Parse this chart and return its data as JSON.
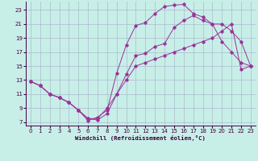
{
  "xlabel": "Windchill (Refroidissement éolien,°C)",
  "bg_color": "#c8eee8",
  "grid_color": "#aabbcc",
  "line_color": "#993399",
  "xlim": [
    -0.5,
    23.5
  ],
  "ylim": [
    6.5,
    24.2
  ],
  "xticks": [
    0,
    1,
    2,
    3,
    4,
    5,
    6,
    7,
    8,
    9,
    10,
    11,
    12,
    13,
    14,
    15,
    16,
    17,
    18,
    19,
    20,
    21,
    22,
    23
  ],
  "yticks": [
    7,
    9,
    11,
    13,
    15,
    17,
    19,
    21,
    23
  ],
  "line1_y": [
    12.8,
    12.2,
    11.0,
    10.5,
    9.8,
    8.7,
    7.5,
    7.3,
    8.2,
    11.0,
    13.8,
    16.5,
    16.8,
    17.8,
    18.2,
    20.5,
    21.5,
    22.2,
    21.5,
    21.0,
    18.5,
    17.0,
    15.5,
    15.0
  ],
  "line2_y": [
    12.8,
    12.2,
    11.0,
    10.5,
    9.8,
    8.7,
    7.2,
    7.7,
    8.7,
    14.0,
    18.0,
    20.8,
    21.2,
    22.5,
    23.5,
    23.7,
    23.8,
    22.5,
    22.0,
    21.0,
    21.0,
    20.0,
    18.5,
    15.0
  ],
  "line3_y": [
    12.8,
    12.2,
    11.0,
    10.5,
    9.8,
    8.7,
    7.5,
    7.5,
    9.0,
    11.0,
    13.0,
    15.0,
    15.5,
    16.0,
    16.5,
    17.0,
    17.5,
    18.0,
    18.5,
    19.0,
    20.0,
    21.0,
    14.5,
    15.0
  ],
  "label_fontsize": 5.2,
  "tick_fontsize": 5.0
}
